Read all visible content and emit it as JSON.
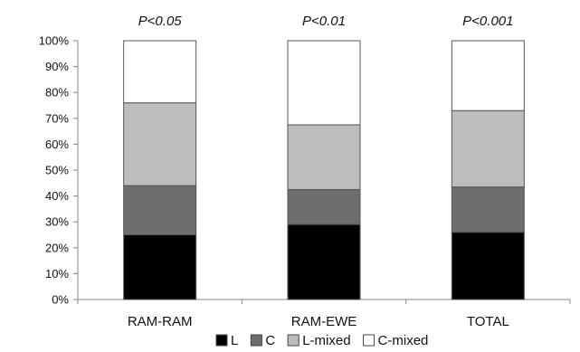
{
  "chart_data": {
    "type": "bar",
    "stacked": true,
    "categories": [
      "RAM-RAM",
      "RAM-EWE",
      "TOTAL"
    ],
    "annotations": [
      "P<0.05",
      "P<0.01",
      "P<0.001"
    ],
    "series": [
      {
        "name": "L",
        "values": [
          25,
          29,
          26
        ],
        "color": "#000000"
      },
      {
        "name": "C",
        "values": [
          19,
          13.5,
          17.5
        ],
        "color": "#6d6d6d"
      },
      {
        "name": "L-mixed",
        "values": [
          32,
          25,
          29.5
        ],
        "color": "#bdbdbd"
      },
      {
        "name": "C-mixed",
        "values": [
          24,
          32.5,
          27
        ],
        "color": "#ffffff"
      }
    ],
    "ylim": [
      0,
      100
    ],
    "yticks": [
      "0%",
      "10%",
      "20%",
      "30%",
      "40%",
      "50%",
      "60%",
      "70%",
      "80%",
      "90%",
      "100%"
    ],
    "legend_position": "bottom",
    "grid": false,
    "title": "",
    "xlabel": "",
    "ylabel": ""
  }
}
